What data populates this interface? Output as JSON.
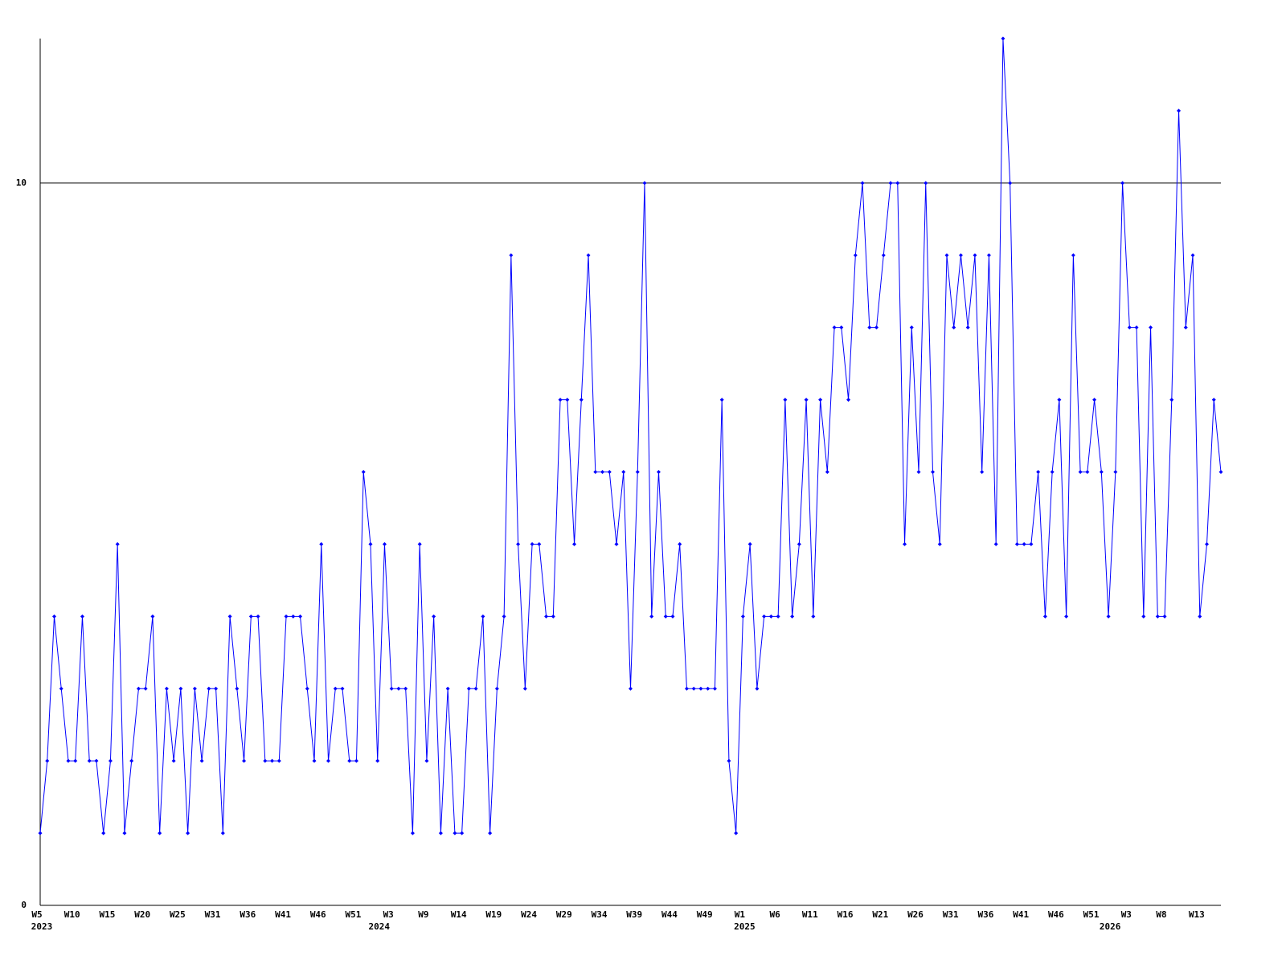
{
  "chart_data": {
    "type": "line",
    "categories": [
      "W5",
      null,
      null,
      null,
      null,
      "W10",
      null,
      null,
      null,
      null,
      "W15",
      null,
      null,
      null,
      null,
      "W20",
      null,
      null,
      null,
      null,
      "W25",
      null,
      null,
      null,
      null,
      "W31",
      null,
      null,
      null,
      null,
      "W36",
      null,
      null,
      null,
      null,
      "W41",
      null,
      null,
      null,
      null,
      "W46",
      null,
      null,
      null,
      null,
      "W51",
      null,
      null,
      null,
      null,
      "W3",
      null,
      null,
      null,
      null,
      "W9",
      null,
      null,
      null,
      null,
      "W14",
      null,
      null,
      null,
      null,
      "W19",
      null,
      null,
      null,
      null,
      "W24",
      null,
      null,
      null,
      null,
      "W29",
      null,
      null,
      null,
      null,
      "W34",
      null,
      null,
      null,
      null,
      "W39",
      null,
      null,
      null,
      null,
      "W44",
      null,
      null,
      null,
      null,
      "W49",
      null,
      null,
      null,
      null,
      "W1",
      null,
      null,
      null,
      null,
      "W6",
      null,
      null,
      null,
      null,
      "W11",
      null,
      null,
      null,
      null,
      "W16",
      null,
      null,
      null,
      null,
      "W21",
      null,
      null,
      null,
      null,
      "W26",
      null,
      null,
      null,
      null,
      "W31",
      null,
      null,
      null,
      null,
      "W36",
      null,
      null,
      null,
      null,
      "W41",
      null,
      null,
      null,
      null,
      "W46",
      null,
      null,
      null,
      null,
      "W51",
      null,
      null,
      null,
      null,
      "W3",
      null,
      null,
      null,
      null,
      "W8",
      null,
      null,
      null,
      null,
      "W13",
      null,
      null,
      null
    ],
    "category_years": [
      "2023",
      null,
      null,
      null,
      null,
      null,
      null,
      null,
      null,
      null,
      null,
      null,
      null,
      null,
      null,
      null,
      null,
      null,
      null,
      null,
      null,
      null,
      null,
      null,
      null,
      null,
      null,
      null,
      null,
      null,
      null,
      null,
      null,
      null,
      null,
      null,
      null,
      null,
      null,
      null,
      null,
      null,
      null,
      null,
      null,
      null,
      null,
      null,
      "2024",
      null,
      null,
      null,
      null,
      null,
      null,
      null,
      null,
      null,
      null,
      null,
      null,
      null,
      null,
      null,
      null,
      null,
      null,
      null,
      null,
      null,
      null,
      null,
      null,
      null,
      null,
      null,
      null,
      null,
      null,
      null,
      null,
      null,
      null,
      null,
      null,
      null,
      null,
      null,
      null,
      null,
      null,
      null,
      null,
      null,
      null,
      null,
      null,
      null,
      null,
      null,
      "2025",
      null,
      null,
      null,
      null,
      null,
      null,
      null,
      null,
      null,
      null,
      null,
      null,
      null,
      null,
      null,
      null,
      null,
      null,
      null,
      null,
      null,
      null,
      null,
      null,
      null,
      null,
      null,
      null,
      null,
      null,
      null,
      null,
      null,
      null,
      null,
      null,
      null,
      null,
      null,
      null,
      null,
      null,
      null,
      null,
      null,
      null,
      null,
      null,
      null,
      null,
      null,
      "2026",
      null,
      null,
      null,
      null,
      null,
      null,
      null,
      null,
      null,
      null,
      null,
      null,
      null,
      null,
      null,
      null
    ],
    "series": [
      {
        "color": "#0000ff",
        "values": [
          1,
          2,
          4,
          3,
          2,
          2,
          4,
          2,
          2,
          1,
          2,
          5,
          1,
          2,
          3,
          3,
          4,
          1,
          3,
          2,
          3,
          1,
          3,
          2,
          3,
          3,
          1,
          4,
          3,
          2,
          4,
          4,
          2,
          2,
          2,
          4,
          4,
          4,
          3,
          2,
          5,
          2,
          3,
          3,
          2,
          2,
          6,
          5,
          2,
          5,
          3,
          3,
          3,
          1,
          5,
          2,
          4,
          1,
          3,
          1,
          1,
          3,
          3,
          4,
          1,
          3,
          4,
          9,
          5,
          3,
          5,
          5,
          4,
          4,
          7,
          7,
          5,
          7,
          9,
          6,
          6,
          6,
          5,
          6,
          3,
          6,
          10,
          4,
          6,
          4,
          4,
          5,
          3,
          3,
          3,
          3,
          3,
          7,
          2,
          1,
          4,
          5,
          3,
          4,
          4,
          4,
          7,
          4,
          5,
          7,
          4,
          7,
          6,
          8,
          8,
          7,
          9,
          10,
          8,
          8,
          9,
          10,
          10,
          5,
          8,
          6,
          10,
          6,
          5,
          9,
          8,
          9,
          8,
          9,
          6,
          9,
          5,
          12,
          10,
          5,
          5,
          5,
          6,
          4,
          6,
          7,
          4,
          9,
          6,
          6,
          7,
          6,
          4,
          6,
          10,
          8,
          8,
          4,
          8,
          4,
          4,
          7,
          11,
          8,
          9,
          4,
          5,
          7,
          6
        ]
      }
    ],
    "ylim": [
      0,
      12
    ],
    "yticks": [
      0,
      10
    ],
    "grid": true
  }
}
